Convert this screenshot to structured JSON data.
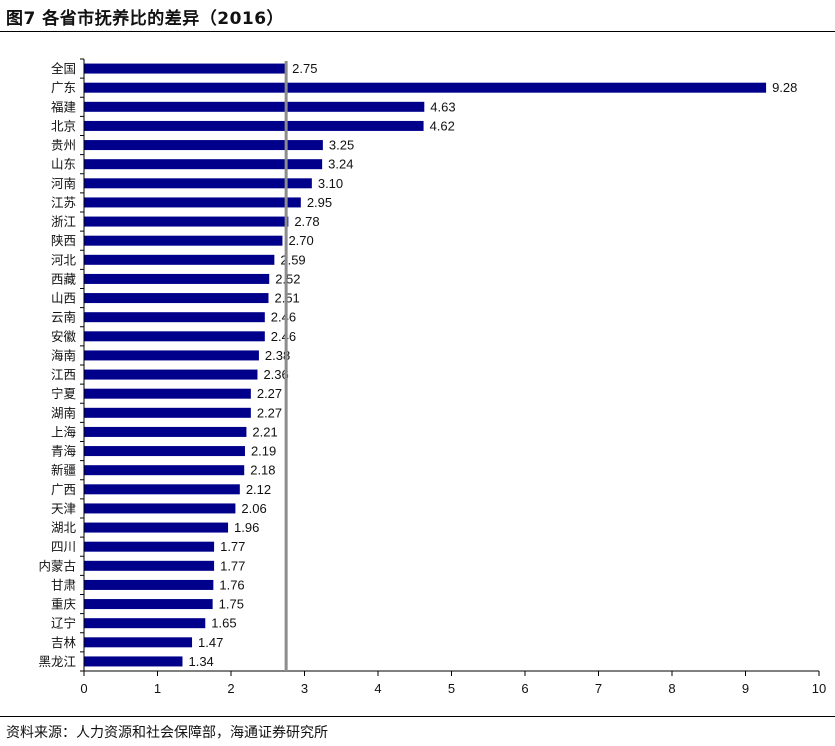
{
  "header": {
    "title": "图7  各省市抚养比的差异（2016）"
  },
  "footer": {
    "source": "资料来源：人力资源和社会保障部，海通证券研究所"
  },
  "chart_data": {
    "type": "bar",
    "orientation": "horizontal",
    "categories": [
      "全国",
      "广东",
      "福建",
      "北京",
      "贵州",
      "山东",
      "河南",
      "江苏",
      "浙江",
      "陕西",
      "河北",
      "西藏",
      "山西",
      "云南",
      "安徽",
      "海南",
      "江西",
      "宁夏",
      "湖南",
      "上海",
      "青海",
      "新疆",
      "广西",
      "天津",
      "湖北",
      "四川",
      "内蒙古",
      "甘肃",
      "重庆",
      "辽宁",
      "吉林",
      "黑龙江"
    ],
    "values": [
      2.75,
      9.28,
      4.63,
      4.62,
      3.25,
      3.24,
      3.1,
      2.95,
      2.78,
      2.7,
      2.59,
      2.52,
      2.51,
      2.46,
      2.46,
      2.38,
      2.36,
      2.27,
      2.27,
      2.21,
      2.19,
      2.18,
      2.12,
      2.06,
      1.96,
      1.77,
      1.77,
      1.76,
      1.75,
      1.65,
      1.47,
      1.34
    ],
    "value_labels": [
      "2.75",
      "9.28",
      "4.63",
      "4.62",
      "3.25",
      "3.24",
      "3.10",
      "2.95",
      "2.78",
      "2.70",
      "2.59",
      "2.52",
      "2.51",
      "2.46",
      "2.46",
      "2.38",
      "2.36",
      "2.27",
      "2.27",
      "2.21",
      "2.19",
      "2.18",
      "2.12",
      "2.06",
      "1.96",
      "1.77",
      "1.77",
      "1.76",
      "1.75",
      "1.65",
      "1.47",
      "1.34"
    ],
    "reference_line": 2.75,
    "xlim": [
      0,
      10
    ],
    "xticks": [
      "0",
      "1",
      "2",
      "3",
      "4",
      "5",
      "6",
      "7",
      "8",
      "9",
      "10"
    ],
    "grid": false,
    "legend": "none",
    "bar_color": "#00008B",
    "reference_line_color": "#8c8c8c"
  }
}
